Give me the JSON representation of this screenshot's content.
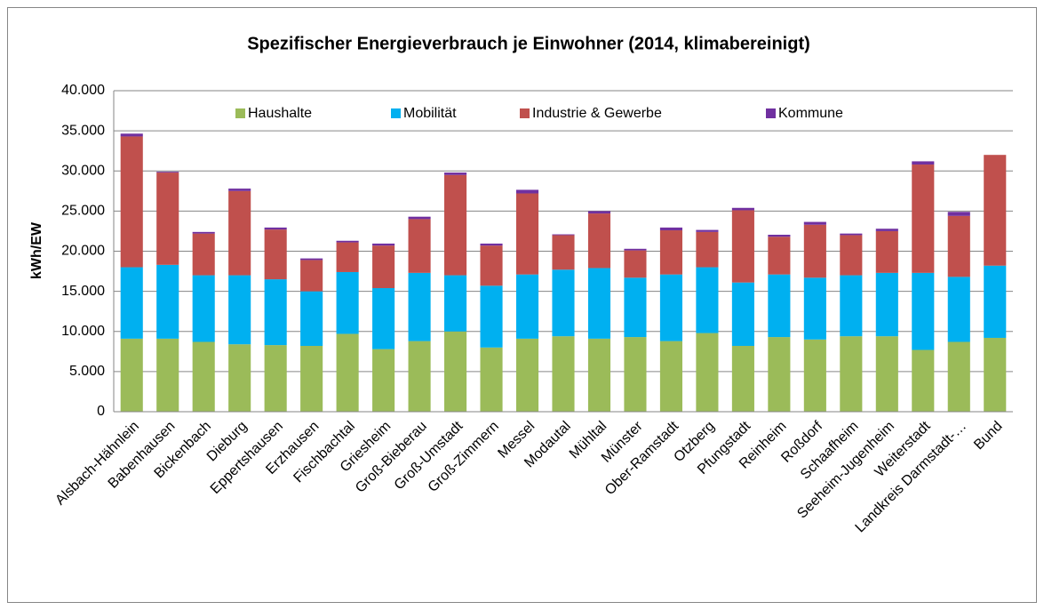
{
  "chart_data": {
    "type": "stacked_bar",
    "title": "Spezifischer Energieverbrauch je Einwohner (2014, klimabereinigt)",
    "y_label": "kWh/EW",
    "categories": [
      "Alsbach-Hähnlein",
      "Babenhausen",
      "Bickenbach",
      "Dieburg",
      "Eppertshausen",
      "Erzhausen",
      "Fischbachtal",
      "Griesheim",
      "Groß-Bieberau",
      "Groß-Umstadt",
      "Groß-Zimmern",
      "Messel",
      "Modautal",
      "Mühltal",
      "Münster",
      "Ober-Ramstadt",
      "Otzberg",
      "Pfungstadt",
      "Reinheim",
      "Roßdorf",
      "Schaafheim",
      "Seeheim-Jugenheim",
      "Weiterstadt",
      "Landkreis Darmstadt-…",
      "Bund"
    ],
    "series": [
      {
        "name": "Haushalte",
        "color": "#9bbb59",
        "values": [
          9100,
          9100,
          8700,
          8400,
          8300,
          8200,
          9700,
          7800,
          8800,
          10000,
          8000,
          9100,
          9400,
          9100,
          9300,
          8800,
          9800,
          8200,
          9300,
          9000,
          9400,
          9400,
          7700,
          8700,
          9200
        ]
      },
      {
        "name": "Mobilität",
        "color": "#00b0f0",
        "values": [
          8900,
          9200,
          8300,
          8600,
          8200,
          6800,
          7700,
          7600,
          8500,
          7000,
          7700,
          8000,
          8300,
          8800,
          7400,
          8300,
          8200,
          7900,
          7800,
          7700,
          7600,
          7900,
          9600,
          8100,
          9000
        ]
      },
      {
        "name": "Industrie & Gewerbe",
        "color": "#c0504d",
        "values": [
          16300,
          11500,
          5200,
          10500,
          6200,
          3900,
          3700,
          5300,
          6700,
          12500,
          5000,
          10100,
          4300,
          6800,
          3400,
          5500,
          4400,
          9000,
          4700,
          6600,
          5000,
          5200,
          13500,
          7600,
          13800
        ]
      },
      {
        "name": "Kommune",
        "color": "#7030a0",
        "values": [
          350,
          100,
          200,
          300,
          250,
          200,
          200,
          250,
          300,
          300,
          250,
          450,
          100,
          300,
          200,
          350,
          250,
          300,
          250,
          350,
          200,
          300,
          400,
          500,
          0
        ]
      }
    ],
    "ylim": [
      0,
      40000
    ],
    "yticks": [
      0,
      {
        "value": 5000,
        "label": "5.000"
      },
      {
        "value": 10000,
        "label": "10.000"
      },
      {
        "value": 15000,
        "label": "15.000"
      },
      {
        "value": 20000,
        "label": "20.000"
      },
      {
        "value": 25000,
        "label": "25.000"
      },
      {
        "value": 30000,
        "label": "30.000"
      },
      {
        "value": 35000,
        "label": "35.000"
      },
      {
        "value": 40000,
        "label": "40.000"
      }
    ],
    "grid": true,
    "legend": "top"
  }
}
